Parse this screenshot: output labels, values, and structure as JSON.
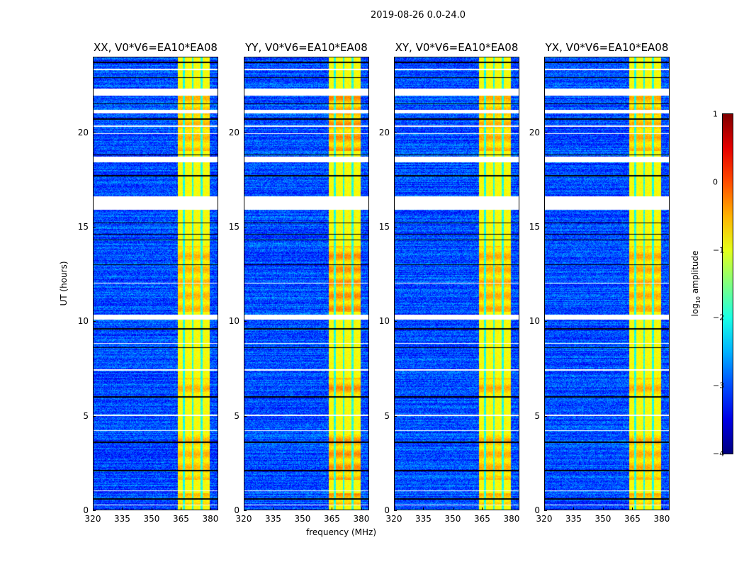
{
  "figure": {
    "suptitle": "2019-08-26 0.0-24.0",
    "xlabel": "frequency (MHz)",
    "ylabel": "UT (hours)",
    "colorbar_label_prefix": "log",
    "colorbar_label_sub": "10",
    "colorbar_label_suffix": " amplitude"
  },
  "chart_data": {
    "type": "heatmap",
    "colormap": "jet",
    "panels": [
      {
        "title": "XX, V0*V6=EA10*EA08",
        "pol": "XX"
      },
      {
        "title": "YY, V0*V6=EA10*EA08",
        "pol": "YY"
      },
      {
        "title": "XY, V0*V6=EA10*EA08",
        "pol": "XY"
      },
      {
        "title": "YX, V0*V6=EA10*EA08",
        "pol": "YX"
      }
    ],
    "xlim": [
      320,
      384
    ],
    "ylim": [
      0,
      24
    ],
    "xticks": [
      "320",
      "335",
      "350",
      "365",
      "380"
    ],
    "yticks": [
      "0",
      "5",
      "10",
      "15",
      "20"
    ],
    "xtick_values": [
      320,
      335,
      350,
      365,
      380
    ],
    "ytick_values": [
      0,
      5,
      10,
      15,
      20
    ],
    "color_range": [
      -4,
      1
    ],
    "colorbar_ticks": [
      "1",
      "0",
      "−1",
      "−2",
      "−3",
      "−4"
    ],
    "colorbar_tick_values": [
      1,
      0,
      -1,
      -2,
      -3,
      -4
    ],
    "background_level": -3.0,
    "rfi_band_MHz": [
      363.5,
      379.5
    ],
    "rfi_band_level": -0.9,
    "rfi_subband_gaps_MHz": [
      366.5,
      371.0,
      375.5
    ],
    "rfi_enhanced_hours": [
      [
        0.3,
        0.9
      ],
      [
        1.6,
        4.0
      ],
      [
        6.0,
        7.0
      ],
      [
        10.5,
        14.0
      ],
      [
        19.0,
        22.2
      ]
    ],
    "flagged_hours": [
      [
        21.95,
        22.3
      ],
      [
        21.0,
        21.2
      ],
      [
        18.4,
        18.7
      ],
      [
        15.9,
        16.6
      ],
      [
        10.1,
        10.35
      ],
      [
        23.3,
        23.35
      ],
      [
        20.3,
        20.35
      ],
      [
        19.9,
        19.95
      ],
      [
        12.0,
        12.05
      ],
      [
        8.8,
        8.85
      ],
      [
        7.4,
        7.45
      ],
      [
        5.0,
        5.05
      ],
      [
        4.2,
        4.25
      ],
      [
        1.0,
        1.05
      ],
      [
        0.25,
        0.3
      ]
    ],
    "dark_line_hours": [
      23.7,
      22.9,
      21.5,
      20.7,
      18.8,
      17.7,
      15.2,
      14.6,
      14.3,
      13.0,
      9.6,
      8.6,
      6.0,
      3.6,
      2.1,
      0.6
    ]
  }
}
